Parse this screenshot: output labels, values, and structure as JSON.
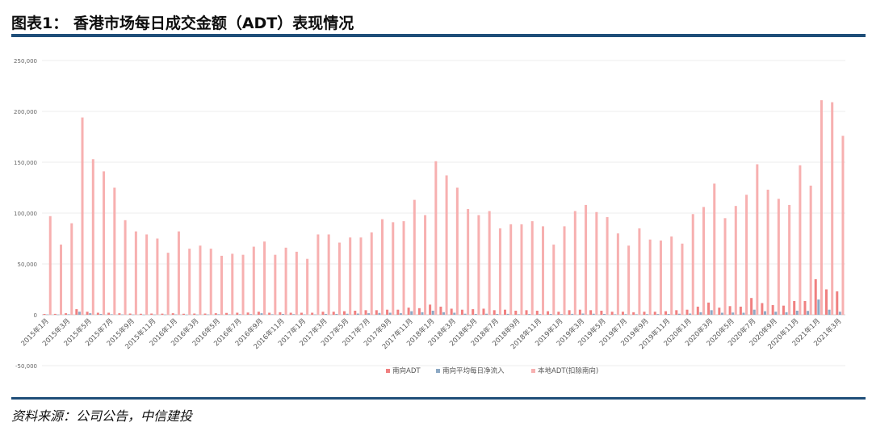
{
  "header": {
    "title": "图表1： 香港市场每日成交金额（ADT）表现情况"
  },
  "footer": {
    "source": "资料来源：公司公告，中信建投"
  },
  "colors": {
    "accent_rule": "#1f4e79",
    "southbound": "#f08080",
    "net_inflow": "#8da9c4",
    "local": "#f7b0b0",
    "gridline": "#ececec",
    "axis_text": "#666666"
  },
  "chart_data": {
    "type": "bar",
    "title": "",
    "xlabel": "",
    "ylabel": "",
    "ylim": [
      -50000,
      250000
    ],
    "yticks": [
      -50000,
      0,
      50000,
      100000,
      150000,
      200000,
      250000
    ],
    "ytick_labels": [
      "-50,000",
      "0",
      "50,000",
      "100,000",
      "150,000",
      "200,000",
      "250,000"
    ],
    "grid": true,
    "legend_position": "bottom",
    "categories": [
      "2015年1月",
      "2015年2月",
      "2015年3月",
      "2015年4月",
      "2015年5月",
      "2015年6月",
      "2015年7月",
      "2015年8月",
      "2015年9月",
      "2015年10月",
      "2015年11月",
      "2015年12月",
      "2016年1月",
      "2016年2月",
      "2016年3月",
      "2016年4月",
      "2016年5月",
      "2016年6月",
      "2016年7月",
      "2016年8月",
      "2016年9月",
      "2016年10月",
      "2016年11月",
      "2016年12月",
      "2017年1月",
      "2017年2月",
      "2017年3月",
      "2017年4月",
      "2017年5月",
      "2017年6月",
      "2017年7月",
      "2017年8月",
      "2017年9月",
      "2017年10月",
      "2017年11月",
      "2017年12月",
      "2018年1月",
      "2018年2月",
      "2018年3月",
      "2018年4月",
      "2018年5月",
      "2018年6月",
      "2018年7月",
      "2018年8月",
      "2018年9月",
      "2018年10月",
      "2018年11月",
      "2018年12月",
      "2019年1月",
      "2019年2月",
      "2019年3月",
      "2019年4月",
      "2019年5月",
      "2019年6月",
      "2019年7月",
      "2019年8月",
      "2019年9月",
      "2019年10月",
      "2019年11月",
      "2019年12月",
      "2020年1月",
      "2020年2月",
      "2020年3月",
      "2020年4月",
      "2020年5月",
      "2020年6月",
      "2020年7月",
      "2020年8月",
      "2020年9月",
      "2020年10月",
      "2020年11月",
      "2020年12月",
      "2021年1月",
      "2021年2月",
      "2021年3月"
    ],
    "xtick_labels": [
      "2015年1月",
      "2015年3月",
      "2015年5月",
      "2015年7月",
      "2015年9月",
      "2015年11月",
      "2016年1月",
      "2016年3月",
      "2016年5月",
      "2016年7月",
      "2016年9月",
      "2016年11月",
      "2017年1月",
      "2017年3月",
      "2017年5月",
      "2017年7月",
      "2017年9月",
      "2017年11月",
      "2018年1月",
      "2018年3月",
      "2018年5月",
      "2018年7月",
      "2018年9月",
      "2018年11月",
      "2019年1月",
      "2019年3月",
      "2019年5月",
      "2019年7月",
      "2019年9月",
      "2019年11月",
      "2020年1月",
      "2020年3月",
      "2020年5月",
      "2020年7月",
      "2020年9月",
      "2020年11月",
      "2021年1月",
      "2021年3月"
    ],
    "series": [
      {
        "name": "南向ADT",
        "values": [
          800,
          900,
          1500,
          5500,
          3000,
          2000,
          2000,
          1500,
          1200,
          1000,
          1200,
          1100,
          1500,
          1000,
          1200,
          1200,
          1500,
          1800,
          2000,
          2200,
          3000,
          2000,
          2500,
          2000,
          2000,
          2000,
          3000,
          3000,
          3500,
          4000,
          4500,
          4500,
          5000,
          5000,
          7000,
          6500,
          10000,
          8000,
          6000,
          5000,
          5500,
          6000,
          4500,
          5000,
          4000,
          4500,
          4000,
          3500,
          3000,
          4500,
          5000,
          4500,
          4000,
          3000,
          3000,
          2500,
          3000,
          3000,
          3500,
          4500,
          5000,
          8000,
          12000,
          7000,
          8500,
          8000,
          16500,
          11500,
          9500,
          9000,
          13500,
          13500,
          35000,
          25000,
          23000
        ]
      },
      {
        "name": "南向平均每日净流入",
        "values": [
          300,
          200,
          500,
          3000,
          1500,
          800,
          500,
          300,
          200,
          100,
          200,
          200,
          300,
          100,
          200,
          300,
          500,
          400,
          500,
          600,
          1500,
          500,
          800,
          600,
          400,
          300,
          800,
          800,
          1000,
          1200,
          1500,
          1800,
          2000,
          1500,
          3500,
          2500,
          4000,
          2500,
          2000,
          1000,
          800,
          1000,
          800,
          900,
          500,
          700,
          600,
          800,
          600,
          900,
          1200,
          1000,
          800,
          500,
          600,
          500,
          600,
          700,
          800,
          1000,
          1200,
          2500,
          4500,
          2000,
          2200,
          2000,
          5000,
          3500,
          3000,
          2500,
          4000,
          3800,
          15000,
          5000,
          3000
        ]
      },
      {
        "name": "本地ADT(扣除南向)",
        "values": [
          97000,
          69000,
          90000,
          194000,
          153000,
          141000,
          125000,
          93000,
          82000,
          79000,
          75000,
          61000,
          82000,
          65000,
          68000,
          65000,
          58000,
          60000,
          59000,
          67000,
          72000,
          59000,
          66000,
          62000,
          55000,
          79000,
          79000,
          71000,
          76000,
          76000,
          81000,
          94000,
          91000,
          92000,
          113000,
          98000,
          151000,
          137000,
          125000,
          104000,
          98000,
          102000,
          85000,
          89000,
          89000,
          92000,
          87000,
          69000,
          87000,
          102000,
          108000,
          101000,
          96000,
          80000,
          68000,
          85000,
          74000,
          73000,
          77000,
          70000,
          99000,
          106000,
          129000,
          95000,
          107000,
          118000,
          148000,
          123000,
          114000,
          108000,
          147000,
          127000,
          211000,
          209000,
          176000
        ]
      }
    ]
  }
}
